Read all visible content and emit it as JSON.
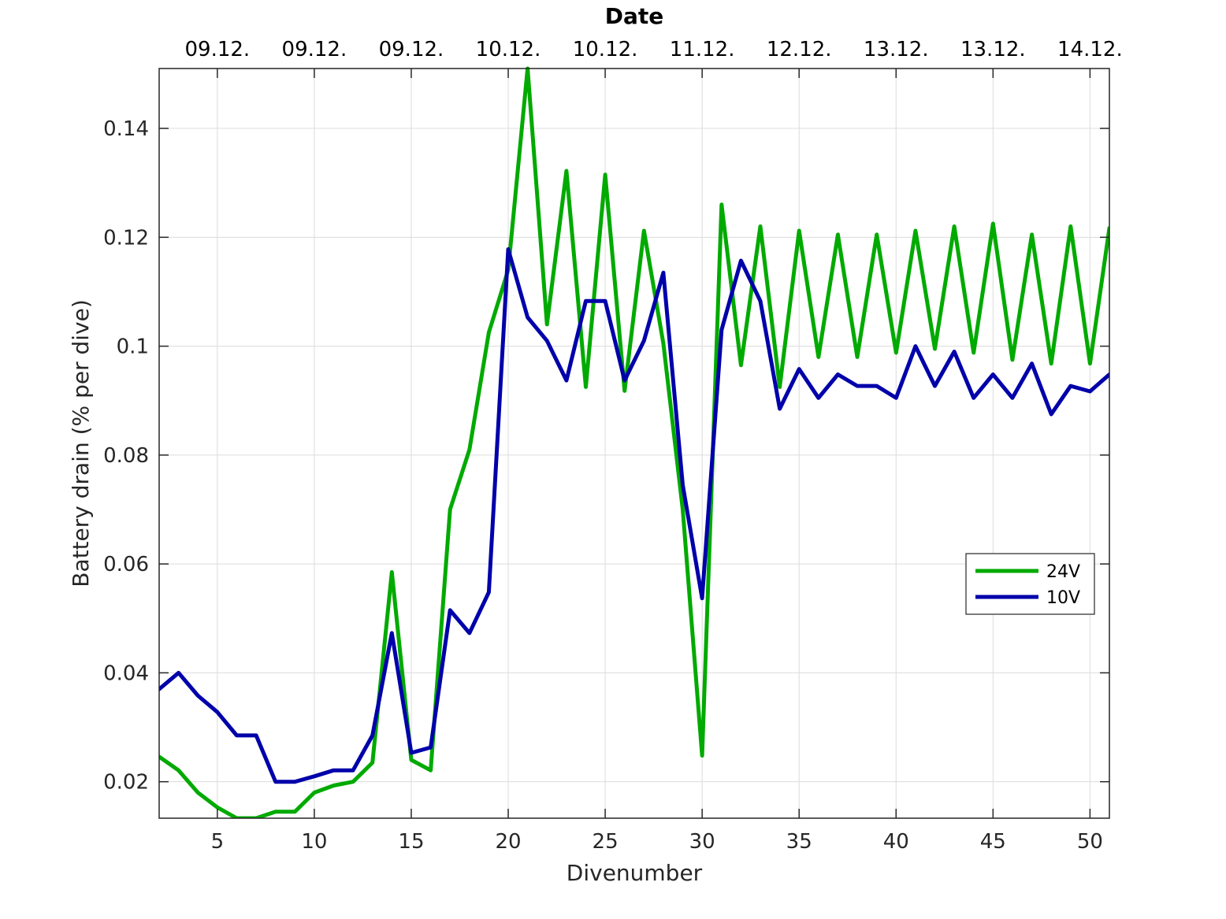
{
  "chart_data": {
    "type": "line",
    "top_title": "Date",
    "xlabel": "Divenumber",
    "ylabel": "Battery drain (% per dive)",
    "xlim": [
      2,
      51
    ],
    "ylim": [
      0.0133,
      0.151
    ],
    "xticks": [
      5,
      10,
      15,
      20,
      25,
      30,
      35,
      40,
      45,
      50
    ],
    "xtick_labels": [
      "5",
      "10",
      "15",
      "20",
      "25",
      "30",
      "35",
      "40",
      "45",
      "50"
    ],
    "yticks": [
      0.02,
      0.04,
      0.06,
      0.08,
      0.1,
      0.12,
      0.14
    ],
    "ytick_labels": [
      "0.02",
      "0.04",
      "0.06",
      "0.08",
      "0.1",
      "0.12",
      "0.14"
    ],
    "top_xticks": [
      5,
      10,
      15,
      20,
      25,
      30,
      35,
      40,
      45,
      50
    ],
    "top_xtick_labels": [
      "09.12.",
      "09.12.",
      "09.12.",
      "10.12.",
      "10.12.",
      "11.12.",
      "12.12.",
      "13.12.",
      "13.12.",
      "14.12."
    ],
    "grid": true,
    "legend_position": "right-middle",
    "x": [
      2,
      3,
      4,
      5,
      6,
      7,
      8,
      9,
      10,
      11,
      12,
      13,
      14,
      15,
      16,
      17,
      18,
      19,
      20,
      21,
      22,
      23,
      24,
      25,
      26,
      27,
      28,
      29,
      30,
      31,
      32,
      33,
      34,
      35,
      36,
      37,
      38,
      39,
      40,
      41,
      42,
      43,
      44,
      45,
      46,
      47,
      48,
      49,
      50,
      51
    ],
    "series": [
      {
        "name": "24V",
        "color": "#00aa00",
        "values": [
          0.0246,
          0.0221,
          0.018,
          0.0153,
          0.0133,
          0.0133,
          0.0145,
          0.0145,
          0.018,
          0.0193,
          0.02,
          0.0235,
          0.0585,
          0.024,
          0.0221,
          0.07,
          0.081,
          0.1025,
          0.114,
          0.151,
          0.104,
          0.1322,
          0.0925,
          0.1315,
          0.0918,
          0.1212,
          0.1005,
          0.07,
          0.0248,
          0.126,
          0.0965,
          0.122,
          0.0925,
          0.1212,
          0.098,
          0.1205,
          0.098,
          0.1205,
          0.0988,
          0.1212,
          0.0995,
          0.122,
          0.0988,
          0.1225,
          0.0975,
          0.1205,
          0.0968,
          0.122,
          0.0968,
          0.1217
        ]
      },
      {
        "name": "10V",
        "color": "#0000aa",
        "values": [
          0.037,
          0.04,
          0.0358,
          0.0328,
          0.0285,
          0.0285,
          0.02,
          0.02,
          0.021,
          0.0221,
          0.0221,
          0.0285,
          0.0473,
          0.0253,
          0.0263,
          0.0515,
          0.0473,
          0.0548,
          0.1178,
          0.1053,
          0.101,
          0.0937,
          0.1083,
          0.1083,
          0.0937,
          0.101,
          0.1135,
          0.0745,
          0.0537,
          0.103,
          0.1157,
          0.1083,
          0.0885,
          0.0958,
          0.0905,
          0.0948,
          0.0927,
          0.0927,
          0.0905,
          0.1,
          0.0927,
          0.099,
          0.0905,
          0.0948,
          0.0905,
          0.0968,
          0.0875,
          0.0927,
          0.0917,
          0.0948
        ]
      }
    ]
  }
}
